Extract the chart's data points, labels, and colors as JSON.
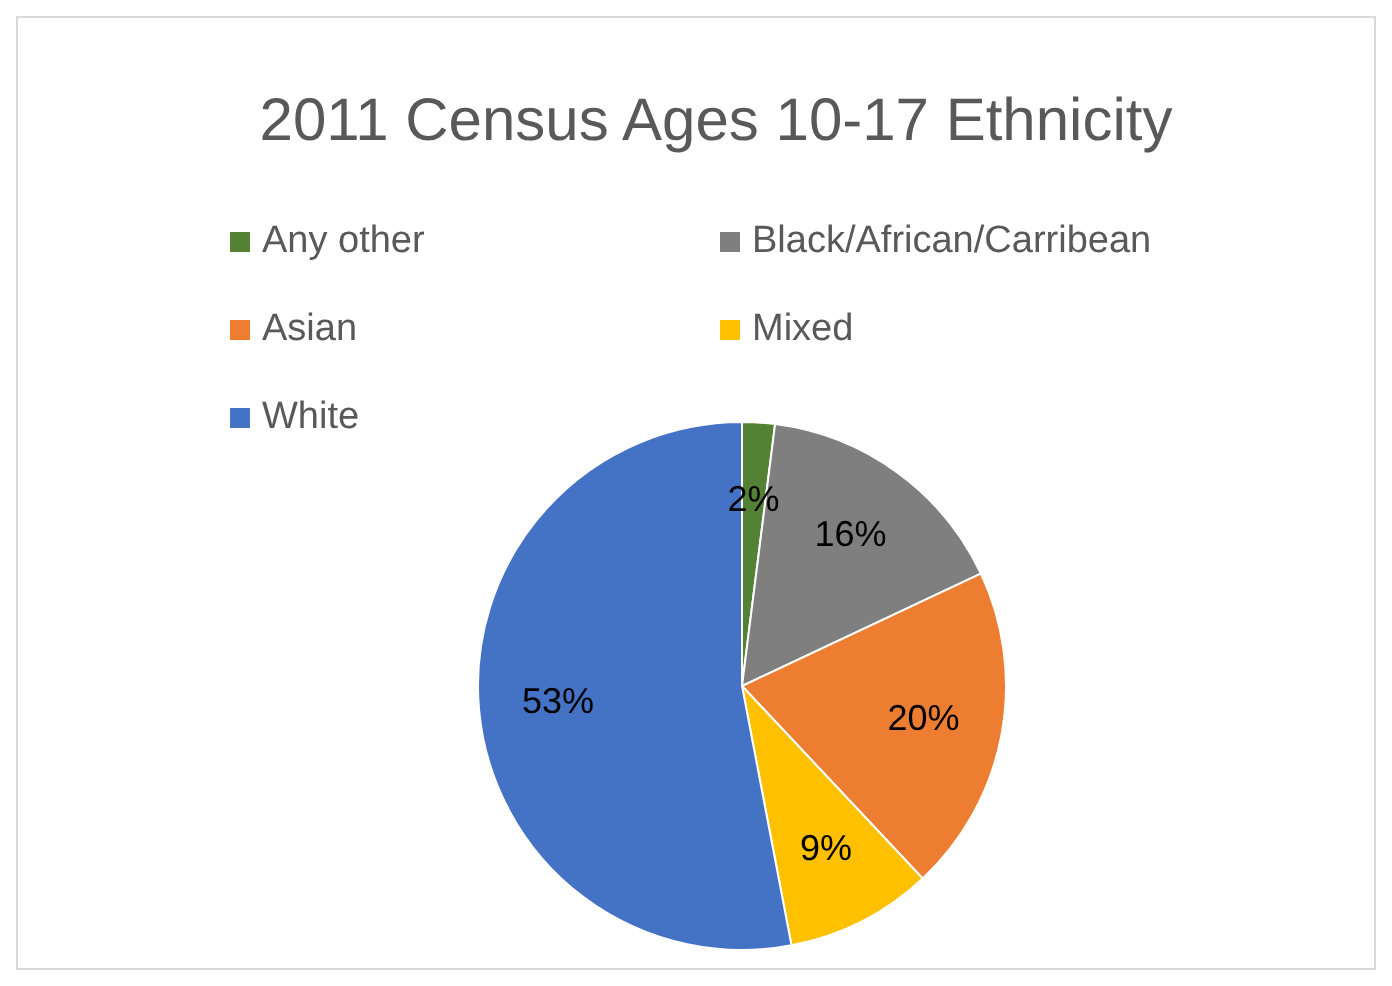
{
  "chart_data": {
    "type": "pie",
    "title": "2011 Census Ages 10-17 Ethnicity",
    "categories": [
      "Any other",
      "Black/African/Carribean",
      "Asian",
      "Mixed",
      "White"
    ],
    "values": [
      2,
      16,
      20,
      9,
      53
    ],
    "colors": [
      "#548235",
      "#7f7f7f",
      "#ed7d31",
      "#ffc000",
      "#4472c4"
    ],
    "value_labels": [
      "2%",
      "16%",
      "20%",
      "9%",
      "53%"
    ],
    "legend": "top"
  }
}
